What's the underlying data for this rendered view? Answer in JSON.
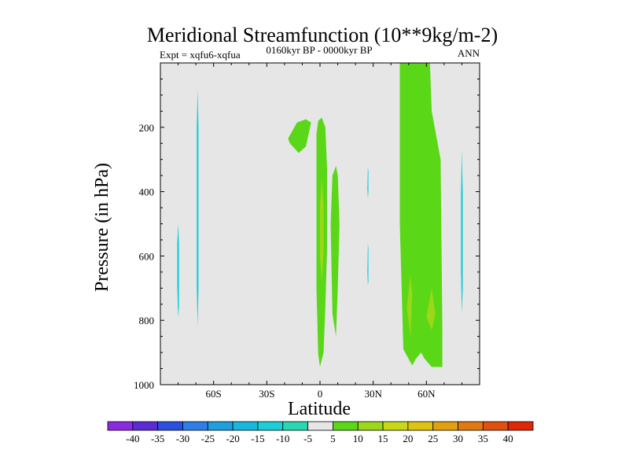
{
  "chart_data": {
    "type": "contour",
    "title": "Meridional Streamfunction (10**9kg/m-2)",
    "subtitle_left": "Expt = xqfu6-xqfua",
    "subtitle_center": "0160kyr BP - 0000kyr BP",
    "subtitle_right": "ANN",
    "xlabel": "Latitude",
    "ylabel": "Pressure (in hPa)",
    "xlim": [
      -90,
      90
    ],
    "ylim": [
      1000,
      0
    ],
    "xticks": [
      {
        "value": -60,
        "label": "60S"
      },
      {
        "value": -30,
        "label": "30S"
      },
      {
        "value": 0,
        "label": "0"
      },
      {
        "value": 30,
        "label": "30N"
      },
      {
        "value": 60,
        "label": "60N"
      }
    ],
    "yticks": [
      {
        "value": 200,
        "label": "200"
      },
      {
        "value": 400,
        "label": "400"
      },
      {
        "value": 600,
        "label": "600"
      },
      {
        "value": 800,
        "label": "800"
      },
      {
        "value": 1000,
        "label": "1000"
      }
    ],
    "colorbar": {
      "labels": [
        "-40",
        "-35",
        "-30",
        "-25",
        "-20",
        "-15",
        "-10",
        "-5",
        "5",
        "10",
        "15",
        "20",
        "25",
        "30",
        "35",
        "40"
      ],
      "colors": [
        "#8a2be2",
        "#5c2bd6",
        "#2d4fe0",
        "#2f7de6",
        "#1e9fe0",
        "#18b8dc",
        "#1ccfd6",
        "#2ad8b0",
        "#e6e6e6",
        "#5ad818",
        "#9ad818",
        "#c8d818",
        "#dcc410",
        "#e0a010",
        "#e27810",
        "#e05010",
        "#e02808"
      ]
    },
    "background_color": "#e6e6e6",
    "regions": [
      {
        "level": 10,
        "color": "#5ad818",
        "points": [
          [
            45,
            0
          ],
          [
            62,
            0
          ],
          [
            63,
            150
          ],
          [
            68,
            300
          ],
          [
            69,
            820
          ],
          [
            69,
            945
          ],
          [
            63,
            945
          ],
          [
            59,
            920
          ],
          [
            57,
            900
          ],
          [
            54,
            920
          ],
          [
            52,
            940
          ],
          [
            47,
            890
          ],
          [
            45,
            500
          ]
        ]
      },
      {
        "level": 15,
        "color": "#9ad818",
        "points": [
          [
            51,
            660
          ],
          [
            52,
            720
          ],
          [
            51,
            850
          ],
          [
            49,
            760
          ]
        ]
      },
      {
        "level": 15,
        "color": "#9ad818",
        "points": [
          [
            63,
            700
          ],
          [
            65,
            780
          ],
          [
            63,
            830
          ],
          [
            60,
            790
          ]
        ]
      },
      {
        "level": 10,
        "color": "#5ad818",
        "points": [
          [
            -1,
            180
          ],
          [
            1,
            170
          ],
          [
            3,
            200
          ],
          [
            4,
            330
          ],
          [
            4,
            580
          ],
          [
            3,
            760
          ],
          [
            2,
            900
          ],
          [
            0,
            945
          ],
          [
            -1,
            905
          ],
          [
            -2,
            700
          ],
          [
            -2,
            400
          ],
          [
            -2,
            220
          ]
        ]
      },
      {
        "level": 15,
        "color": "#9ad818",
        "points": [
          [
            1,
            360
          ],
          [
            2,
            440
          ],
          [
            2,
            590
          ],
          [
            1,
            680
          ],
          [
            0,
            600
          ],
          [
            0,
            440
          ]
        ]
      },
      {
        "level": 10,
        "color": "#5ad818",
        "points": [
          [
            7,
            350
          ],
          [
            9,
            320
          ],
          [
            10,
            350
          ],
          [
            11,
            500
          ],
          [
            10,
            700
          ],
          [
            9,
            850
          ],
          [
            7,
            780
          ],
          [
            6,
            500
          ]
        ]
      },
      {
        "level": 10,
        "color": "#5ad818",
        "points": [
          [
            -18,
            235
          ],
          [
            -13,
            185
          ],
          [
            -8,
            175
          ],
          [
            -5,
            185
          ],
          [
            -8,
            260
          ],
          [
            -12,
            280
          ],
          [
            -17,
            250
          ]
        ]
      },
      {
        "level": -10,
        "color": "#1ccfd6",
        "points": [
          [
            -80,
            500
          ],
          [
            -79.5,
            560
          ],
          [
            -79.5,
            760
          ],
          [
            -80,
            790
          ],
          [
            -80.5,
            700
          ],
          [
            -80.5,
            560
          ]
        ]
      },
      {
        "level": -10,
        "color": "#1ccfd6",
        "points": [
          [
            -69,
            80
          ],
          [
            -68.5,
            200
          ],
          [
            -68.5,
            700
          ],
          [
            -69,
            820
          ],
          [
            -69.5,
            700
          ],
          [
            -69.5,
            200
          ]
        ]
      },
      {
        "level": -10,
        "color": "#1ccfd6",
        "points": [
          [
            80,
            270
          ],
          [
            80.5,
            400
          ],
          [
            80.5,
            700
          ],
          [
            80,
            780
          ],
          [
            79.5,
            650
          ],
          [
            79.5,
            400
          ]
        ]
      },
      {
        "level": -10,
        "color": "#1ccfd6",
        "points": [
          [
            27,
            320
          ],
          [
            27.3,
            340
          ],
          [
            27.3,
            400
          ],
          [
            27,
            420
          ],
          [
            26.7,
            390
          ]
        ]
      },
      {
        "level": -10,
        "color": "#1ccfd6",
        "points": [
          [
            27,
            560
          ],
          [
            27.3,
            580
          ],
          [
            27.3,
            680
          ],
          [
            27,
            690
          ],
          [
            26.7,
            650
          ]
        ]
      }
    ]
  }
}
